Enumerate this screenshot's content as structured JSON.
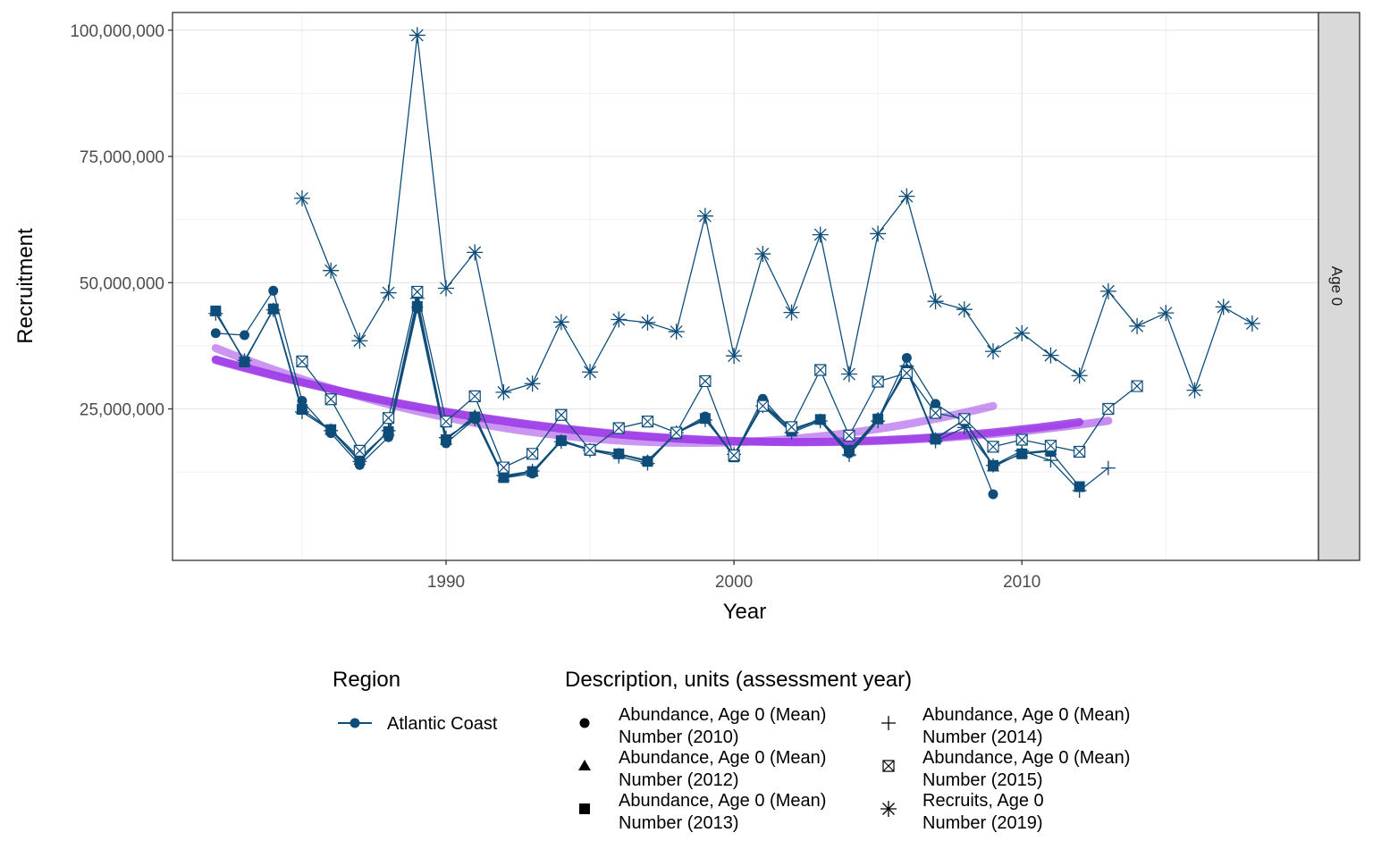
{
  "chart_data": {
    "type": "line",
    "xlabel": "Year",
    "ylabel": "Recruitment",
    "xlim": [
      1980.5,
      2020.3
    ],
    "ylim": [
      -5000000,
      103500000
    ],
    "x_ticks": [
      1990,
      2000,
      2010
    ],
    "x_tick_labels": [
      "1990",
      "2000",
      "2010"
    ],
    "y_ticks": [
      25000000,
      50000000,
      75000000,
      100000000
    ],
    "y_tick_labels": [
      "25,000,000",
      "50,000,000",
      "75,000,000",
      "100,000,000"
    ],
    "grid": true,
    "facet_label": "Age 0",
    "line_color": "#0e4d7a",
    "trend_color": "#a040e8",
    "legend": {
      "region_title": "Region",
      "region_entries": [
        "Atlantic Coast"
      ],
      "description_title": "Description, units (assessment year)",
      "description_entries": [
        {
          "line1": "Abundance, Age 0 (Mean)",
          "line2": "Number (2010)",
          "shape": "circle"
        },
        {
          "line1": "Abundance, Age 0 (Mean)",
          "line2": "Number (2012)",
          "shape": "triangle"
        },
        {
          "line1": "Abundance, Age 0 (Mean)",
          "line2": "Number (2013)",
          "shape": "square"
        },
        {
          "line1": "Abundance, Age 0 (Mean)",
          "line2": "Number (2014)",
          "shape": "plus"
        },
        {
          "line1": "Abundance, Age 0 (Mean)",
          "line2": "Number (2015)",
          "shape": "boxcross"
        },
        {
          "line1": "Recruits, Age 0",
          "line2": "Number (2019)",
          "shape": "asterisk"
        }
      ]
    },
    "series": [
      {
        "shape": "circle",
        "x": [
          1982,
          1983,
          1984,
          1985,
          1986,
          1987,
          1988,
          1989,
          1990,
          1991,
          1992,
          1993,
          1994,
          1995,
          1996,
          1997,
          1998,
          1999,
          2000,
          2001,
          2002,
          2003,
          2004,
          2005,
          2006,
          2007,
          2008,
          2009
        ],
        "y": [
          40000000,
          39600000,
          48400000,
          26600000,
          20200000,
          13900000,
          19400000,
          44900000,
          18200000,
          23000000,
          11300000,
          12200000,
          18600000,
          16900000,
          16000000,
          14600000,
          20300000,
          23500000,
          15700000,
          27000000,
          20700000,
          22800000,
          16200000,
          22900000,
          35100000,
          26000000,
          22300000,
          8100000
        ]
      },
      {
        "shape": "triangle",
        "x": [
          1982,
          1983,
          1984,
          1985,
          1986,
          1987,
          1988,
          1989,
          1990,
          1991,
          1992,
          1993,
          1994,
          1995,
          1996,
          1997,
          1998,
          1999,
          2000,
          2001,
          2002,
          2003,
          2004,
          2005,
          2006,
          2007,
          2008,
          2009,
          2010,
          2011
        ],
        "y": [
          44300000,
          34500000,
          44700000,
          24900000,
          20800000,
          14800000,
          20600000,
          45900000,
          18800000,
          23700000,
          11600000,
          12600000,
          18800000,
          17000000,
          16100000,
          14800000,
          20200000,
          23100000,
          15600000,
          26200000,
          21000000,
          22900000,
          16500000,
          23200000,
          33000000,
          19200000,
          22800000,
          13500000,
          16300000,
          16800000
        ]
      },
      {
        "shape": "square",
        "x": [
          1982,
          1983,
          1984,
          1985,
          1986,
          1987,
          1988,
          1989,
          1990,
          1991,
          1992,
          1993,
          1994,
          1995,
          1996,
          1997,
          1998,
          1999,
          2000,
          2001,
          2002,
          2003,
          2004,
          2005,
          2006,
          2007,
          2008,
          2009,
          2010,
          2011,
          2012
        ],
        "y": [
          44400000,
          34300000,
          44800000,
          24900000,
          20900000,
          15300000,
          20500000,
          45300000,
          18900000,
          23400000,
          11400000,
          12600000,
          18700000,
          16800000,
          16100000,
          14600000,
          20100000,
          23100000,
          15500000,
          25900000,
          20600000,
          22900000,
          16800000,
          23000000,
          32600000,
          19000000,
          22900000,
          13800000,
          16100000,
          16600000,
          9600000
        ]
      },
      {
        "shape": "plus",
        "x": [
          1982,
          1983,
          1984,
          1985,
          1986,
          1987,
          1988,
          1989,
          1990,
          1991,
          1992,
          1993,
          1994,
          1995,
          1996,
          1997,
          1998,
          1999,
          2000,
          2001,
          2002,
          2003,
          2004,
          2005,
          2006,
          2007,
          2008,
          2009,
          2010,
          2011,
          2012,
          2013
        ],
        "y": [
          43900000,
          34600000,
          44600000,
          24400000,
          20700000,
          14600000,
          20700000,
          46900000,
          19300000,
          23000000,
          11800000,
          12700000,
          18500000,
          16800000,
          15600000,
          14200000,
          20300000,
          22800000,
          16000000,
          25600000,
          20300000,
          22600000,
          15900000,
          22600000,
          33500000,
          18600000,
          21300000,
          13800000,
          16700000,
          14800000,
          8800000,
          13300000
        ]
      },
      {
        "shape": "boxcross",
        "x": [
          1985,
          1986,
          1987,
          1988,
          1989,
          1990,
          1991,
          1992,
          1993,
          1994,
          1995,
          1996,
          1997,
          1998,
          1999,
          2000,
          2001,
          2002,
          2003,
          2004,
          2005,
          2006,
          2007,
          2008,
          2009,
          2010,
          2011,
          2012,
          2013,
          2014
        ],
        "y": [
          34400000,
          26900000,
          16700000,
          23200000,
          48200000,
          22500000,
          27500000,
          13400000,
          16100000,
          23800000,
          16900000,
          21200000,
          22500000,
          20300000,
          30500000,
          15800000,
          25600000,
          21400000,
          32700000,
          19700000,
          30400000,
          32100000,
          24200000,
          23000000,
          17500000,
          18900000,
          17700000,
          16500000,
          25000000,
          29500000
        ]
      },
      {
        "shape": "asterisk",
        "x": [
          1985,
          1986,
          1987,
          1988,
          1989,
          1990,
          1991,
          1992,
          1993,
          1994,
          1995,
          1996,
          1997,
          1998,
          1999,
          2000,
          2001,
          2002,
          2003,
          2004,
          2005,
          2006,
          2007,
          2008,
          2009,
          2010,
          2011,
          2012,
          2013,
          2014,
          2015,
          2016,
          2017,
          2018
        ],
        "y": [
          66700000,
          52400000,
          38500000,
          48000000,
          99000000,
          48900000,
          56000000,
          28300000,
          30000000,
          42200000,
          32300000,
          42700000,
          42100000,
          40300000,
          63200000,
          35500000,
          55700000,
          44100000,
          59500000,
          31900000,
          59700000,
          67100000,
          46300000,
          44700000,
          36400000,
          40000000,
          35600000,
          31600000,
          48300000,
          41400000,
          44000000,
          28700000,
          45200000,
          41900000
        ]
      }
    ],
    "trend_lines": [
      {
        "x0": 1982,
        "x1": 2009,
        "opacity": 0.55
      },
      {
        "x0": 1982,
        "x1": 2012,
        "opacity": 0.9
      },
      {
        "x0": 1982,
        "x1": 2013,
        "opacity": 0.6
      }
    ]
  }
}
